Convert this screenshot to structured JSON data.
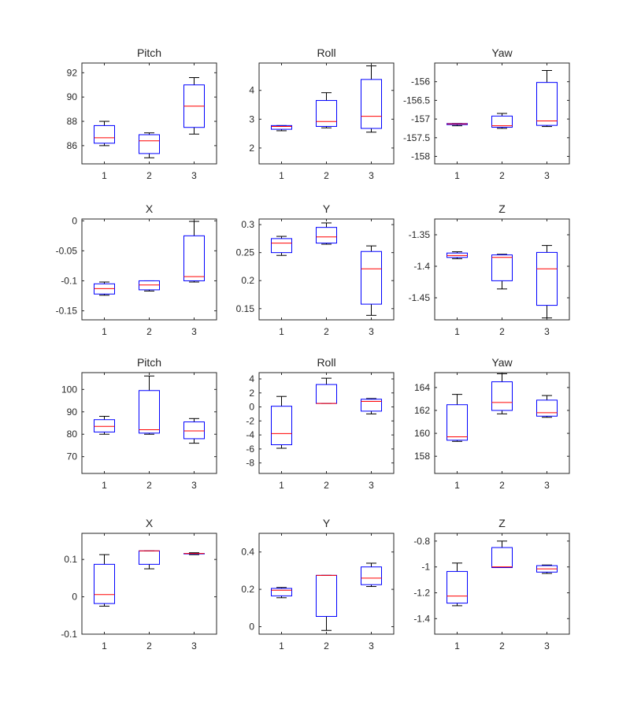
{
  "colors": {
    "box": "#0000ff",
    "median": "#ff0000",
    "whisker": "#000000",
    "axes": "#262626",
    "background": "#ffffff"
  },
  "chart_data": [
    {
      "type": "boxplot",
      "title": "Pitch",
      "categories": [
        "1",
        "2",
        "3"
      ],
      "ylim": [
        84.5,
        92.8
      ],
      "yticks": [
        86,
        88,
        90,
        92
      ],
      "ytick_labels": [
        "86",
        "88",
        "90",
        "92"
      ],
      "boxes": [
        {
          "min": 86.0,
          "q1": 86.2,
          "median": 86.65,
          "q3": 87.65,
          "max": 88.0
        },
        {
          "min": 85.0,
          "q1": 85.35,
          "median": 86.4,
          "q3": 86.9,
          "max": 87.05
        },
        {
          "min": 86.95,
          "q1": 87.5,
          "median": 89.25,
          "q3": 91.0,
          "max": 91.6
        }
      ]
    },
    {
      "type": "boxplot",
      "title": "Roll",
      "categories": [
        "1",
        "2",
        "3"
      ],
      "ylim": [
        1.45,
        4.95
      ],
      "yticks": [
        2,
        3,
        4
      ],
      "ytick_labels": [
        "2",
        "3",
        "4"
      ],
      "boxes": [
        {
          "min": 2.6,
          "q1": 2.65,
          "median": 2.75,
          "q3": 2.78,
          "max": 2.78
        },
        {
          "min": 2.7,
          "q1": 2.75,
          "median": 2.92,
          "q3": 3.65,
          "max": 3.92
        },
        {
          "min": 2.55,
          "q1": 2.68,
          "median": 3.1,
          "q3": 4.38,
          "max": 4.85
        }
      ]
    },
    {
      "type": "boxplot",
      "title": "Yaw",
      "categories": [
        "1",
        "2",
        "3"
      ],
      "ylim": [
        -158.2,
        -155.5
      ],
      "yticks": [
        -158,
        -157.5,
        -157,
        -156.5,
        -156
      ],
      "ytick_labels": [
        "-158",
        "-157.5",
        "-157",
        "-156.5",
        "-156"
      ],
      "boxes": [
        {
          "min": -157.18,
          "q1": -157.15,
          "median": -157.13,
          "q3": -157.12,
          "max": -157.12
        },
        {
          "min": -157.25,
          "q1": -157.22,
          "median": -157.18,
          "q3": -156.92,
          "max": -156.85
        },
        {
          "min": -157.2,
          "q1": -157.17,
          "median": -157.05,
          "q3": -156.02,
          "max": -155.7
        }
      ]
    },
    {
      "type": "boxplot",
      "title": "X",
      "categories": [
        "1",
        "2",
        "3"
      ],
      "ylim": [
        -0.165,
        0.003
      ],
      "yticks": [
        -0.15,
        -0.1,
        -0.05,
        0
      ],
      "ytick_labels": [
        "-0.15",
        "-0.1",
        "-0.05",
        "0"
      ],
      "boxes": [
        {
          "min": -0.124,
          "q1": -0.122,
          "median": -0.113,
          "q3": -0.105,
          "max": -0.102
        },
        {
          "min": -0.117,
          "q1": -0.115,
          "median": -0.107,
          "q3": -0.1,
          "max": -0.1
        },
        {
          "min": -0.102,
          "q1": -0.1,
          "median": -0.093,
          "q3": -0.025,
          "max": -0.001
        }
      ]
    },
    {
      "type": "boxplot",
      "title": "Y",
      "categories": [
        "1",
        "2",
        "3"
      ],
      "ylim": [
        0.13,
        0.31
      ],
      "yticks": [
        0.15,
        0.2,
        0.25,
        0.3
      ],
      "ytick_labels": [
        "0.15",
        "0.2",
        "0.25",
        "0.3"
      ],
      "boxes": [
        {
          "min": 0.245,
          "q1": 0.25,
          "median": 0.267,
          "q3": 0.275,
          "max": 0.279
        },
        {
          "min": 0.265,
          "q1": 0.267,
          "median": 0.278,
          "q3": 0.295,
          "max": 0.303
        },
        {
          "min": 0.138,
          "q1": 0.158,
          "median": 0.221,
          "q3": 0.252,
          "max": 0.262
        }
      ]
    },
    {
      "type": "boxplot",
      "title": "Z",
      "categories": [
        "1",
        "2",
        "3"
      ],
      "ylim": [
        -1.485,
        -1.325
      ],
      "yticks": [
        -1.45,
        -1.4,
        -1.35
      ],
      "ytick_labels": [
        "-1.45",
        "-1.4",
        "-1.35"
      ],
      "boxes": [
        {
          "min": -1.388,
          "q1": -1.386,
          "median": -1.383,
          "q3": -1.379,
          "max": -1.377
        },
        {
          "min": -1.436,
          "q1": -1.423,
          "median": -1.386,
          "q3": -1.382,
          "max": -1.381
        },
        {
          "min": -1.482,
          "q1": -1.462,
          "median": -1.404,
          "q3": -1.378,
          "max": -1.367
        }
      ]
    },
    {
      "type": "boxplot",
      "title": "Pitch",
      "categories": [
        "1",
        "2",
        "3"
      ],
      "ylim": [
        62.5,
        107.5
      ],
      "yticks": [
        70,
        80,
        90,
        100
      ],
      "ytick_labels": [
        "70",
        "80",
        "90",
        "100"
      ],
      "boxes": [
        {
          "min": 80.0,
          "q1": 81.0,
          "median": 83.5,
          "q3": 86.5,
          "max": 88.0
        },
        {
          "min": 80.0,
          "q1": 80.5,
          "median": 82.0,
          "q3": 99.5,
          "max": 106.0
        },
        {
          "min": 76.0,
          "q1": 78.0,
          "median": 81.5,
          "q3": 85.5,
          "max": 87.0
        }
      ]
    },
    {
      "type": "boxplot",
      "title": "Roll",
      "categories": [
        "1",
        "2",
        "3"
      ],
      "ylim": [
        -9.5,
        4.9
      ],
      "yticks": [
        -8,
        -6,
        -4,
        -2,
        0,
        2,
        4
      ],
      "ytick_labels": [
        "-8",
        "-6",
        "-4",
        "-2",
        "0",
        "2",
        "4"
      ],
      "boxes": [
        {
          "min": -5.9,
          "q1": -5.4,
          "median": -3.8,
          "q3": 0.1,
          "max": 1.5
        },
        {
          "min": 0.5,
          "q1": 0.5,
          "median": 0.5,
          "q3": 3.2,
          "max": 4.1
        },
        {
          "min": -1.0,
          "q1": -0.6,
          "median": 0.8,
          "q3": 1.1,
          "max": 1.2
        }
      ]
    },
    {
      "type": "boxplot",
      "title": "Yaw",
      "categories": [
        "1",
        "2",
        "3"
      ],
      "ylim": [
        156.5,
        165.3
      ],
      "yticks": [
        158,
        160,
        162,
        164
      ],
      "ytick_labels": [
        "158",
        "160",
        "162",
        "164"
      ],
      "boxes": [
        {
          "min": 159.3,
          "q1": 159.4,
          "median": 159.7,
          "q3": 162.5,
          "max": 163.4
        },
        {
          "min": 161.7,
          "q1": 162.0,
          "median": 162.7,
          "q3": 164.5,
          "max": 165.2
        },
        {
          "min": 161.4,
          "q1": 161.5,
          "median": 161.8,
          "q3": 162.9,
          "max": 163.3
        }
      ]
    },
    {
      "type": "boxplot",
      "title": "X",
      "categories": [
        "1",
        "2",
        "3"
      ],
      "ylim": [
        -0.1,
        0.17
      ],
      "yticks": [
        -0.1,
        0,
        0.1
      ],
      "ytick_labels": [
        "-0.1",
        "0",
        "0.1"
      ],
      "boxes": [
        {
          "min": -0.025,
          "q1": -0.018,
          "median": 0.006,
          "q3": 0.087,
          "max": 0.113
        },
        {
          "min": 0.075,
          "q1": 0.087,
          "median": 0.123,
          "q3": 0.123,
          "max": 0.123
        },
        {
          "min": 0.113,
          "q1": 0.115,
          "median": 0.116,
          "q3": 0.116,
          "max": 0.118
        }
      ]
    },
    {
      "type": "boxplot",
      "title": "Y",
      "categories": [
        "1",
        "2",
        "3"
      ],
      "ylim": [
        -0.04,
        0.5
      ],
      "yticks": [
        0,
        0.2,
        0.4
      ],
      "ytick_labels": [
        "0",
        "0.2",
        "0.4"
      ],
      "boxes": [
        {
          "min": 0.155,
          "q1": 0.165,
          "median": 0.195,
          "q3": 0.205,
          "max": 0.21
        },
        {
          "min": -0.02,
          "q1": 0.055,
          "median": 0.275,
          "q3": 0.275,
          "max": 0.275
        },
        {
          "min": 0.215,
          "q1": 0.225,
          "median": 0.26,
          "q3": 0.32,
          "max": 0.34
        }
      ]
    },
    {
      "type": "boxplot",
      "title": "Z",
      "categories": [
        "1",
        "2",
        "3"
      ],
      "ylim": [
        -1.52,
        -0.74
      ],
      "yticks": [
        -1.4,
        -1.2,
        -1,
        -0.8
      ],
      "ytick_labels": [
        "-1.4",
        "-1.2",
        "-1",
        "-0.8"
      ],
      "boxes": [
        {
          "min": -1.3,
          "q1": -1.28,
          "median": -1.225,
          "q3": -1.035,
          "max": -0.97
        },
        {
          "min": -1.005,
          "q1": -1.005,
          "median": -1.0,
          "q3": -0.85,
          "max": -0.8
        },
        {
          "min": -1.05,
          "q1": -1.04,
          "median": -1.015,
          "q3": -0.99,
          "max": -0.985
        }
      ]
    }
  ]
}
